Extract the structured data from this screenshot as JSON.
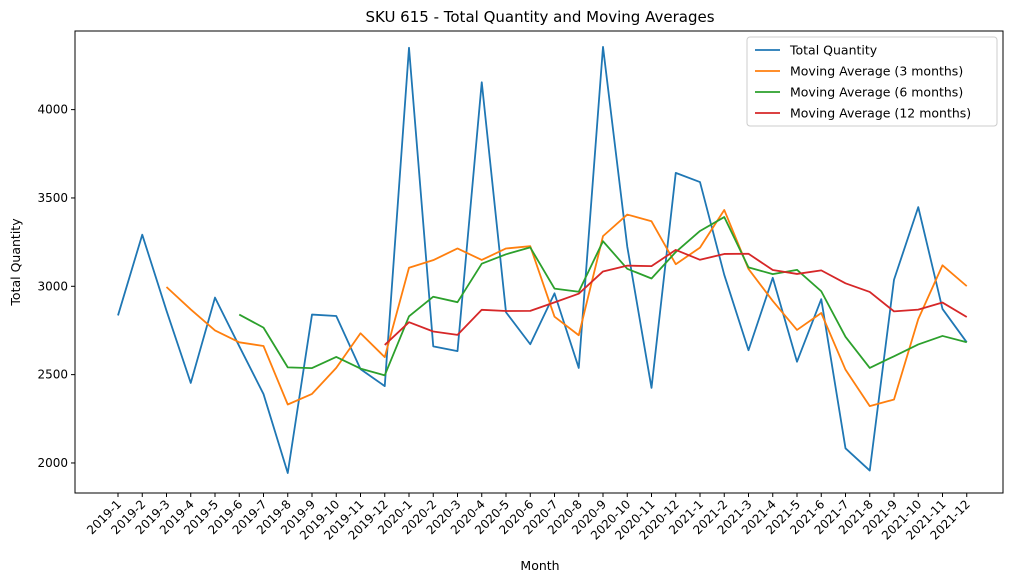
{
  "chart_data": {
    "type": "line",
    "title": "SKU 615 - Total Quantity and Moving Averages",
    "xlabel": "Month",
    "ylabel": "Total Quantity",
    "ylim": [
      1830,
      4445
    ],
    "yticks": [
      2000,
      2500,
      3000,
      3500,
      4000
    ],
    "grid": false,
    "legend_position": "top-right",
    "categories": [
      "2019-1",
      "2019-2",
      "2019-3",
      "2019-4",
      "2019-5",
      "2019-6",
      "2019-7",
      "2019-8",
      "2019-9",
      "2019-10",
      "2019-11",
      "2019-12",
      "2020-1",
      "2020-2",
      "2020-3",
      "2020-4",
      "2020-5",
      "2020-6",
      "2020-7",
      "2020-8",
      "2020-9",
      "2020-10",
      "2020-11",
      "2020-12",
      "2021-1",
      "2021-2",
      "2021-3",
      "2021-4",
      "2021-5",
      "2021-6",
      "2021-7",
      "2021-8",
      "2021-9",
      "2021-10",
      "2021-11",
      "2021-12"
    ],
    "series": [
      {
        "name": "Total Quantity",
        "color": "#1f77b4",
        "values": [
          2835,
          3292,
          2862,
          2453,
          2936,
          2661,
          2390,
          1943,
          2840,
          2832,
          2531,
          2435,
          4350,
          2660,
          2633,
          4155,
          2853,
          2672,
          2960,
          2538,
          4355,
          3225,
          2425,
          3642,
          3590,
          3065,
          2638,
          3048,
          2573,
          2927,
          2083,
          1957,
          3037,
          3448,
          2872,
          2683
        ]
      },
      {
        "name": "Moving Average (3 months)",
        "color": "#ff7f0e",
        "values": [
          null,
          null,
          2996,
          2869,
          2750,
          2683,
          2662,
          2331,
          2391,
          2538,
          2734,
          2599,
          3105,
          3148,
          3214,
          3149,
          3214,
          3227,
          2828,
          2723,
          3284,
          3406,
          3368,
          3125,
          3219,
          3432,
          3098,
          2917,
          2753,
          2849,
          2528,
          2322,
          2359,
          2814,
          3119,
          3001
        ]
      },
      {
        "name": "Moving Average (6 months)",
        "color": "#2ca02c",
        "values": [
          null,
          null,
          null,
          null,
          null,
          2840,
          2766,
          2541,
          2537,
          2600,
          2534,
          2496,
          2830,
          2941,
          2910,
          3128,
          3181,
          3220,
          2987,
          2969,
          3255,
          3099,
          3044,
          3194,
          3313,
          3392,
          3107,
          3069,
          3093,
          2972,
          2714,
          2538,
          2604,
          2671,
          2719,
          2683
        ]
      },
      {
        "name": "Moving Average (12 months)",
        "color": "#d62728",
        "values": [
          null,
          null,
          null,
          null,
          null,
          null,
          null,
          null,
          null,
          null,
          null,
          2668,
          2797,
          2744,
          2725,
          2867,
          2860,
          2861,
          2909,
          2958,
          3084,
          3117,
          3114,
          3206,
          3150,
          3183,
          3184,
          3092,
          3070,
          3090,
          3017,
          2968,
          2858,
          2868,
          2908,
          2826
        ]
      }
    ]
  }
}
